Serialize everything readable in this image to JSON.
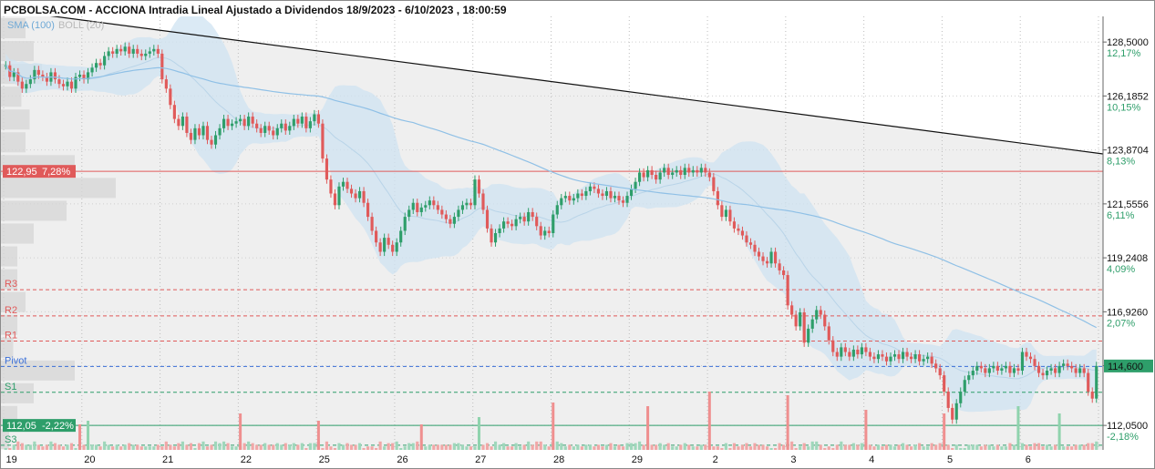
{
  "header": {
    "title": "PCBOLSA.COM - ACCIONA Intradia Lineal Ajustado a Dividendos 18/9/2023 - 6/10/2023 , 18:00:59",
    "legend_sma": "SMA (100)",
    "legend_boll": "BOLL (20)"
  },
  "colors": {
    "up": "#2e9e6a",
    "down": "#e05a5a",
    "sma": "#8fc0e6",
    "band": "#cfe3f1",
    "resistance": "#e05a5a",
    "support": "#2e9e6a",
    "pivot": "#3a6fd8",
    "price_badge": "#2e9e6a"
  },
  "chart_data": {
    "type": "candlestick",
    "y_ticks": [
      {
        "value": 128.5,
        "label": "128,5000",
        "pct": "12,17%"
      },
      {
        "value": 126.1852,
        "label": "126,1852",
        "pct": "10,15%"
      },
      {
        "value": 123.8704,
        "label": "123,8704",
        "pct": "8,13%"
      },
      {
        "value": 121.5556,
        "label": "121,5556",
        "pct": "6,11%"
      },
      {
        "value": 119.2408,
        "label": "119,2408",
        "pct": "4,09%"
      },
      {
        "value": 116.926,
        "label": "116,9260",
        "pct": "2,07%"
      },
      {
        "value": 114.6112,
        "label": "114,6112",
        "pct": ""
      },
      {
        "value": 112.05,
        "label": "112,0500",
        "pct": "-2,18%"
      }
    ],
    "ylim": [
      111.0,
      129.6
    ],
    "x_ticks": [
      "19",
      "20",
      "21",
      "22",
      "25",
      "26",
      "27",
      "28",
      "29",
      "2",
      "3",
      "4",
      "5",
      "6"
    ],
    "last_price": {
      "value": 114.6,
      "label": "114,600"
    },
    "levels": [
      {
        "name": "R3",
        "value": 117.87,
        "kind": "resistance"
      },
      {
        "name": "R2",
        "value": 116.75,
        "kind": "resistance"
      },
      {
        "name": "R1",
        "value": 115.67,
        "kind": "resistance"
      },
      {
        "name": "Pivot",
        "value": 114.58,
        "kind": "pivot"
      },
      {
        "name": "S1",
        "value": 113.47,
        "kind": "support"
      },
      {
        "name": "S3",
        "value": 111.2,
        "kind": "support"
      }
    ],
    "marked_levels": [
      {
        "value": 122.95,
        "label": "122,95",
        "pct": "7,28%",
        "kind": "resistance"
      },
      {
        "value": 112.05,
        "label": "112,05",
        "pct": "-2,22%",
        "kind": "support"
      }
    ],
    "trendline": {
      "start": 129.9,
      "end": 123.7
    },
    "session_closes": [
      [
        127.5,
        127.0,
        127.2,
        126.8,
        126.5,
        126.7,
        126.9,
        127.3,
        127.1,
        127.0,
        126.8,
        127.2,
        126.9,
        126.7,
        126.6,
        126.8,
        126.5,
        127.0,
        127.1
      ],
      [
        126.9,
        127.2,
        127.4,
        127.6,
        127.5,
        127.9,
        128.1,
        128.0,
        128.2,
        128.1,
        128.3,
        128.0,
        128.2,
        128.0,
        127.9,
        128.0,
        128.1,
        128.2,
        128.0
      ],
      [
        126.9,
        126.5,
        125.8,
        125.2,
        124.9,
        125.3,
        124.6,
        124.3,
        124.8,
        124.5,
        124.9,
        124.3,
        124.1,
        124.5,
        124.8,
        125.2,
        124.9,
        125.0,
        125.1
      ],
      [
        125.2,
        124.9,
        125.3,
        125.0,
        124.8,
        124.6,
        124.9,
        124.7,
        124.5,
        124.8,
        125.0,
        124.7,
        124.9,
        125.2,
        125.0,
        125.3,
        124.8,
        125.1,
        125.4
      ],
      [
        125.0,
        123.5,
        122.6,
        122.0,
        121.5,
        122.3,
        122.5,
        122.2,
        122.0,
        121.8,
        122.1,
        121.6,
        121.0,
        120.4,
        119.9,
        119.5,
        120.1,
        119.8,
        119.5
      ],
      [
        119.9,
        120.4,
        121.0,
        121.3,
        121.6,
        121.2,
        121.4,
        121.5,
        121.7,
        121.5,
        121.3,
        121.1,
        120.9,
        120.7,
        121.0,
        121.3,
        121.5,
        121.6,
        121.5
      ],
      [
        122.6,
        122.0,
        121.3,
        120.5,
        119.9,
        120.3,
        120.5,
        120.8,
        120.7,
        120.6,
        120.9,
        121.0,
        120.8,
        121.2,
        121.0,
        120.6,
        120.2,
        120.4,
        120.3
      ],
      [
        121.1,
        121.5,
        121.8,
        121.9,
        121.7,
        121.8,
        122.0,
        121.9,
        122.1,
        122.3,
        122.2,
        122.0,
        121.9,
        122.1,
        121.8,
        121.9,
        121.7,
        121.6,
        121.9
      ],
      [
        122.2,
        122.5,
        122.9,
        122.7,
        123.0,
        122.8,
        122.6,
        122.9,
        123.1,
        122.8,
        122.9,
        123.0,
        122.8,
        123.1,
        122.9,
        123.0,
        122.9,
        123.1,
        122.9
      ],
      [
        122.7,
        122.1,
        121.5,
        121.0,
        121.3,
        120.8,
        120.5,
        120.4,
        120.2,
        119.9,
        119.8,
        119.5,
        119.3,
        119.1,
        119.0,
        119.5,
        119.0,
        118.7,
        118.5
      ],
      [
        117.2,
        116.8,
        116.3,
        116.9,
        115.6,
        116.2,
        116.6,
        117.0,
        116.8,
        116.3,
        115.7,
        115.2,
        115.0,
        115.4,
        115.2,
        115.0,
        115.3,
        115.1,
        115.4
      ],
      [
        115.2,
        115.0,
        114.9,
        115.1,
        115.0,
        114.8,
        115.0,
        115.1,
        114.9,
        115.2,
        115.0,
        114.9,
        115.1,
        114.8,
        114.9,
        115.0,
        114.7,
        114.5,
        114.2
      ],
      [
        113.5,
        112.8,
        112.3,
        113.0,
        113.5,
        114.0,
        114.2,
        114.4,
        114.6,
        114.5,
        114.3,
        114.5,
        114.6,
        114.4,
        114.5,
        114.6,
        114.3,
        114.5,
        114.4
      ],
      [
        115.2,
        115.0,
        114.9,
        114.6,
        114.3,
        114.2,
        114.4,
        114.5,
        114.3,
        114.6,
        114.7,
        114.6,
        114.5,
        114.3,
        114.5,
        114.3,
        113.5,
        113.2,
        114.6
      ]
    ],
    "volume_profile": [
      0.3,
      0.4,
      0.5,
      0.25,
      0.35,
      0.3,
      0.9,
      1.4,
      0.8,
      0.4,
      0.2,
      0.2,
      0.3,
      0.2,
      0.15,
      0.9,
      0.4,
      0.2,
      0.1
    ],
    "volume_spikes": [
      {
        "session": 0,
        "slot": 18,
        "rel": 0.7,
        "up": false
      },
      {
        "session": 1,
        "slot": 1,
        "rel": 0.8,
        "up": true
      },
      {
        "session": 3,
        "slot": 0,
        "rel": 1.0,
        "up": false
      },
      {
        "session": 4,
        "slot": 0,
        "rel": 0.8,
        "up": false
      },
      {
        "session": 5,
        "slot": 6,
        "rel": 0.7,
        "up": false
      },
      {
        "session": 6,
        "slot": 1,
        "rel": 0.9,
        "up": true
      },
      {
        "session": 7,
        "slot": 0,
        "rel": 1.3,
        "up": false
      },
      {
        "session": 8,
        "slot": 4,
        "rel": 1.2,
        "up": false
      },
      {
        "session": 9,
        "slot": 0,
        "rel": 1.6,
        "up": false
      },
      {
        "session": 10,
        "slot": 0,
        "rel": 1.5,
        "up": false
      },
      {
        "session": 11,
        "slot": 0,
        "rel": 1.1,
        "up": false
      },
      {
        "session": 12,
        "slot": 0,
        "rel": 1.0,
        "up": false
      },
      {
        "session": 12,
        "slot": 18,
        "rel": 1.2,
        "up": true
      },
      {
        "session": 13,
        "slot": 9,
        "rel": 1.0,
        "up": true
      }
    ]
  }
}
